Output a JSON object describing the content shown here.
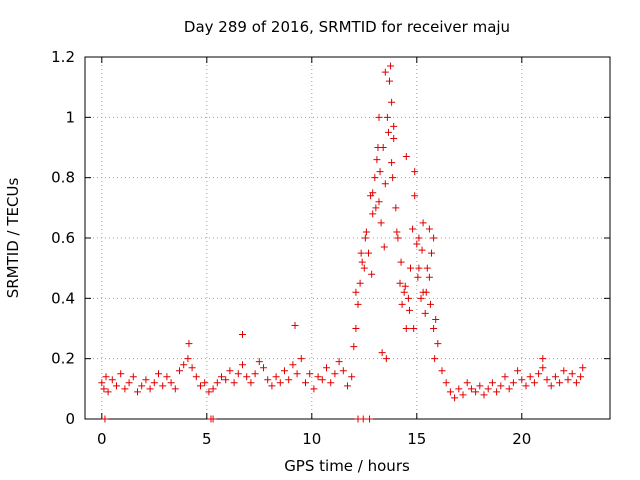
{
  "chart_data": {
    "type": "scatter",
    "title": "Day 289 of 2016, SRMTID for receiver maju",
    "xlabel": "GPS time / hours",
    "ylabel": "SRMTID / TECUs",
    "xlim": [
      -0.8,
      24.2
    ],
    "ylim": [
      0,
      1.2
    ],
    "xticks": [
      0,
      5,
      10,
      15,
      20
    ],
    "yticks": [
      0,
      0.2,
      0.4,
      0.6,
      0.8,
      1,
      1.2
    ],
    "ytick_labels": [
      "0",
      "0.2",
      "0.4",
      "0.6",
      "0.8",
      "1",
      "1.2"
    ],
    "grid": true,
    "marker": "+",
    "color": "#e00000",
    "series": [
      {
        "name": "SRMTID",
        "x": [
          0.0,
          0.1,
          0.2,
          0.3,
          0.5,
          0.7,
          0.9,
          1.1,
          1.3,
          1.5,
          1.7,
          1.9,
          2.1,
          2.3,
          2.5,
          2.7,
          2.9,
          3.1,
          3.3,
          3.5,
          3.7,
          3.9,
          4.1,
          4.3,
          4.5,
          4.7,
          4.9,
          5.1,
          5.3,
          5.5,
          5.7,
          5.9,
          6.1,
          6.3,
          6.5,
          6.7,
          6.9,
          7.1,
          7.3,
          7.5,
          7.7,
          7.9,
          8.1,
          8.3,
          8.5,
          8.7,
          8.9,
          9.1,
          9.3,
          9.5,
          9.7,
          9.9,
          10.1,
          10.3,
          10.5,
          10.7,
          10.9,
          11.1,
          11.3,
          11.5,
          11.7,
          11.9,
          12.0,
          12.1,
          12.2,
          12.3,
          12.4,
          12.5,
          12.6,
          12.7,
          12.8,
          12.9,
          13.0,
          13.1,
          13.2,
          13.3,
          13.4,
          13.5,
          13.6,
          13.7,
          13.8,
          13.9,
          14.0,
          14.1,
          14.2,
          14.3,
          14.4,
          14.5,
          14.6,
          14.7,
          14.8,
          14.9,
          15.0,
          15.1,
          15.2,
          15.3,
          15.4,
          15.5,
          15.6,
          15.7,
          15.8,
          15.9,
          16.0,
          16.2,
          16.4,
          16.6,
          16.8,
          17.0,
          17.2,
          17.4,
          17.6,
          17.8,
          18.0,
          18.2,
          18.4,
          18.6,
          18.8,
          19.0,
          19.2,
          19.4,
          19.6,
          19.8,
          20.0,
          20.2,
          20.4,
          20.6,
          20.8,
          21.0,
          21.2,
          21.4,
          21.6,
          21.8,
          22.0,
          22.2,
          22.4,
          22.6,
          22.8,
          0.15,
          5.2,
          5.3,
          12.2,
          12.45,
          12.75,
          12.1,
          12.35,
          12.55,
          12.85,
          13.05,
          13.25,
          13.45,
          13.65,
          13.85,
          14.05,
          14.25,
          14.45,
          14.65,
          14.85,
          15.05,
          15.25,
          15.45,
          15.65,
          15.85,
          13.5,
          13.8,
          13.75,
          13.9,
          13.2,
          13.15,
          12.9,
          14.5,
          14.9,
          15.1,
          15.3,
          15.6,
          15.8,
          13.35,
          13.55,
          9.2,
          6.7,
          4.15,
          21.0,
          22.9
        ],
        "y": [
          0.12,
          0.1,
          0.14,
          0.09,
          0.13,
          0.11,
          0.15,
          0.1,
          0.12,
          0.14,
          0.09,
          0.11,
          0.13,
          0.1,
          0.12,
          0.15,
          0.11,
          0.14,
          0.12,
          0.1,
          0.16,
          0.18,
          0.2,
          0.17,
          0.14,
          0.11,
          0.12,
          0.09,
          0.1,
          0.12,
          0.14,
          0.13,
          0.16,
          0.12,
          0.15,
          0.18,
          0.14,
          0.12,
          0.15,
          0.19,
          0.17,
          0.13,
          0.11,
          0.14,
          0.12,
          0.16,
          0.13,
          0.18,
          0.15,
          0.2,
          0.12,
          0.15,
          0.1,
          0.14,
          0.13,
          0.17,
          0.12,
          0.15,
          0.19,
          0.16,
          0.11,
          0.14,
          0.24,
          0.3,
          0.38,
          0.45,
          0.52,
          0.5,
          0.62,
          0.55,
          0.74,
          0.68,
          0.8,
          0.86,
          0.72,
          0.65,
          0.9,
          0.78,
          1.0,
          1.12,
          0.85,
          0.93,
          0.7,
          0.6,
          0.45,
          0.38,
          0.42,
          0.3,
          0.4,
          0.5,
          0.63,
          0.74,
          0.58,
          0.5,
          0.4,
          0.42,
          0.35,
          0.5,
          0.47,
          0.55,
          0.3,
          0.33,
          0.25,
          0.16,
          0.12,
          0.09,
          0.07,
          0.1,
          0.08,
          0.12,
          0.1,
          0.09,
          0.11,
          0.08,
          0.1,
          0.12,
          0.09,
          0.11,
          0.14,
          0.1,
          0.12,
          0.16,
          0.13,
          0.11,
          0.14,
          0.12,
          0.15,
          0.17,
          0.13,
          0.11,
          0.14,
          0.12,
          0.16,
          0.13,
          0.15,
          0.12,
          0.14,
          0.0,
          0.0,
          0.0,
          0.0,
          0.0,
          0.0,
          0.42,
          0.55,
          0.6,
          0.48,
          0.7,
          0.82,
          0.57,
          0.95,
          0.8,
          0.62,
          0.52,
          0.44,
          0.36,
          0.3,
          0.47,
          0.56,
          0.42,
          0.38,
          0.2,
          1.15,
          1.05,
          1.17,
          0.97,
          1.0,
          0.9,
          0.75,
          0.87,
          0.82,
          0.6,
          0.65,
          0.63,
          0.6,
          0.22,
          0.2,
          0.31,
          0.28,
          0.25,
          0.2,
          0.17
        ]
      }
    ]
  }
}
